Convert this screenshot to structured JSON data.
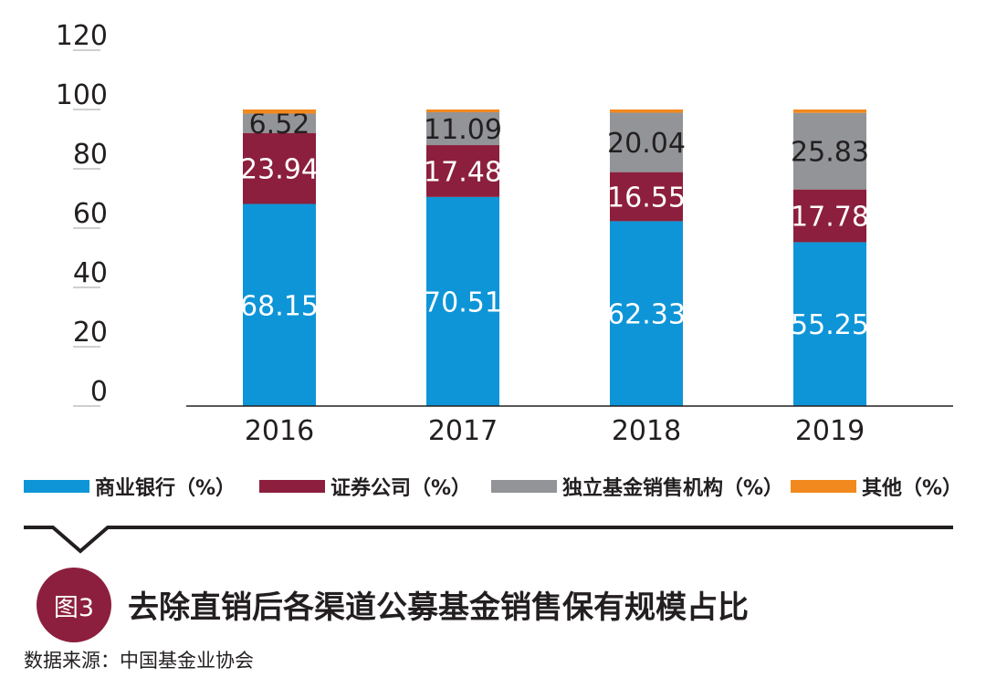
{
  "chart_data": {
    "type": "bar",
    "stacked": true,
    "categories": [
      "2016",
      "2017",
      "2018",
      "2019"
    ],
    "series": [
      {
        "name": "商业银行（%）",
        "color": "#0e95d7",
        "values": [
          68.15,
          70.51,
          62.33,
          55.25
        ]
      },
      {
        "name": "证券公司（%）",
        "color": "#8c1f3d",
        "values": [
          23.94,
          17.48,
          16.55,
          17.78
        ]
      },
      {
        "name": "独立基金销售机构（%）",
        "color": "#929497",
        "values": [
          6.52,
          11.09,
          20.04,
          25.83
        ]
      },
      {
        "name": "其他（%）",
        "color": "#f2891f",
        "values": [
          1.39,
          0.92,
          1.08,
          1.14
        ]
      }
    ],
    "label_colors": [
      "#ffffff",
      "#ffffff",
      "#231f20"
    ],
    "y_ticks": [
      "0",
      "20",
      "40",
      "60",
      "80",
      "100",
      "120"
    ],
    "ylim": [
      0,
      120
    ],
    "grid": false,
    "legend_position": "bottom",
    "title": "去除直销后各渠道公募基金销售保有规模占比"
  },
  "caption": {
    "badge": "图3",
    "title": "去除直销后各渠道公募基金销售保有规模占比",
    "source": "数据来源：中国基金业协会"
  }
}
